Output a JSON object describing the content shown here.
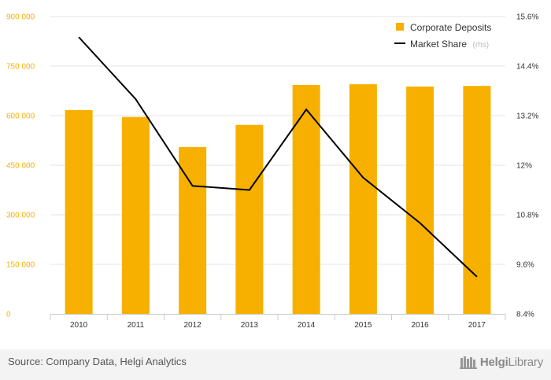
{
  "colors": {
    "bar": "#f7b000",
    "line": "#000000",
    "left_tick": "#f7b000",
    "grid": "#e6e6e6",
    "axis": "#cccccc"
  },
  "chart_data": {
    "type": "bar",
    "categories": [
      "2010",
      "2011",
      "2012",
      "2013",
      "2014",
      "2015",
      "2016",
      "2017"
    ],
    "series": [
      {
        "name": "Corporate Deposits",
        "type": "bar",
        "axis": "left",
        "values": [
          617000,
          596000,
          505000,
          572000,
          693000,
          695000,
          688000,
          690000
        ]
      },
      {
        "name": "Market Share",
        "name_suffix": "(rhs)",
        "type": "line",
        "axis": "right",
        "values": [
          15.1,
          13.6,
          11.5,
          11.4,
          13.35,
          11.7,
          10.6,
          9.3
        ]
      }
    ],
    "ylim_left": [
      0,
      900000
    ],
    "yticks_left": [
      "0",
      "150 000",
      "300 000",
      "450 000",
      "600 000",
      "750 000",
      "900 000"
    ],
    "ylim_right": [
      8.4,
      15.6
    ],
    "yticks_right": [
      "8.4%",
      "9.6%",
      "10.8%",
      "12%",
      "13.2%",
      "14.4%",
      "15.6%"
    ],
    "grid": true,
    "legend_position": "top-right"
  },
  "footer": {
    "source": "Source: Company Data, Helgi Analytics",
    "logo_prefix": "Helgi",
    "logo_suffix": "Library"
  }
}
